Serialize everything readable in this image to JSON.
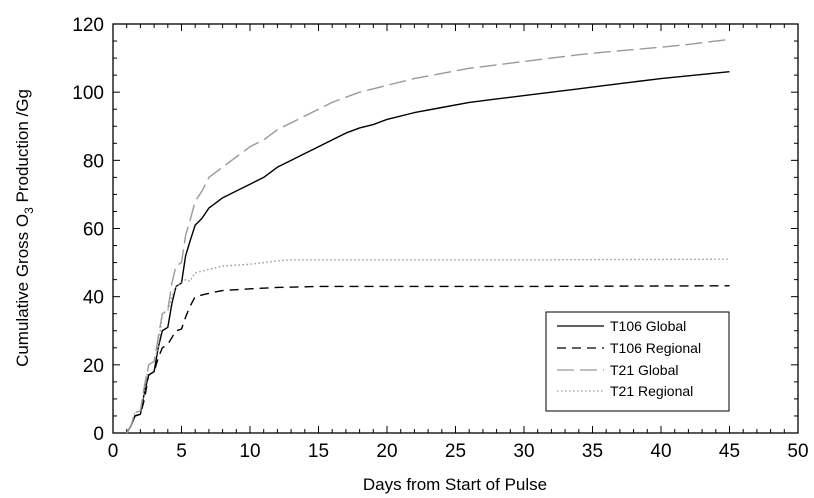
{
  "chart_data": {
    "type": "line",
    "xlabel": "Days from Start of Pulse",
    "ylabel_parts": [
      "Cumulative Gross O",
      "3",
      " Production /Gg"
    ],
    "xlim": [
      0,
      50
    ],
    "ylim": [
      0,
      120
    ],
    "xticks": [
      0,
      5,
      10,
      15,
      20,
      25,
      30,
      35,
      40,
      45,
      50
    ],
    "yticks": [
      0,
      20,
      40,
      60,
      80,
      100,
      120
    ],
    "grid": false,
    "legend_position": "bottom-right",
    "series": [
      {
        "name": "T106 Global",
        "color": "#000000",
        "dash": "solid",
        "points": [
          [
            1,
            0
          ],
          [
            1.3,
            2
          ],
          [
            1.6,
            5
          ],
          [
            2.0,
            5.5
          ],
          [
            2.3,
            12
          ],
          [
            2.6,
            17
          ],
          [
            3.0,
            18
          ],
          [
            3.3,
            25
          ],
          [
            3.6,
            30
          ],
          [
            4.0,
            31
          ],
          [
            4.3,
            38
          ],
          [
            4.6,
            43
          ],
          [
            5.0,
            44
          ],
          [
            5.3,
            52
          ],
          [
            5.6,
            56
          ],
          [
            6.0,
            61
          ],
          [
            6.5,
            63
          ],
          [
            7.0,
            66
          ],
          [
            8.0,
            69
          ],
          [
            9.0,
            71
          ],
          [
            10,
            73
          ],
          [
            11,
            75
          ],
          [
            12,
            78
          ],
          [
            13,
            80
          ],
          [
            14,
            82
          ],
          [
            15,
            84
          ],
          [
            16,
            86
          ],
          [
            17,
            88
          ],
          [
            18,
            89.5
          ],
          [
            19,
            90.5
          ],
          [
            20,
            92
          ],
          [
            22,
            94
          ],
          [
            24,
            95.5
          ],
          [
            26,
            97
          ],
          [
            28,
            98
          ],
          [
            30,
            99
          ],
          [
            32,
            100
          ],
          [
            34,
            101
          ],
          [
            36,
            102
          ],
          [
            38,
            103
          ],
          [
            40,
            104
          ],
          [
            42,
            104.8
          ],
          [
            45,
            106
          ]
        ]
      },
      {
        "name": "T106 Regional",
        "color": "#000000",
        "dash": "dashed",
        "points": [
          [
            1,
            0
          ],
          [
            1.3,
            2
          ],
          [
            1.6,
            5
          ],
          [
            2.0,
            5.5
          ],
          [
            2.3,
            10
          ],
          [
            2.6,
            17
          ],
          [
            3.0,
            18
          ],
          [
            3.3,
            22
          ],
          [
            3.6,
            25
          ],
          [
            4.0,
            26
          ],
          [
            4.3,
            28
          ],
          [
            4.6,
            30
          ],
          [
            5.0,
            30.5
          ],
          [
            5.3,
            34
          ],
          [
            5.6,
            37
          ],
          [
            6.0,
            40
          ],
          [
            7.0,
            41
          ],
          [
            8.0,
            41.8
          ],
          [
            10,
            42.3
          ],
          [
            12,
            42.7
          ],
          [
            15,
            43
          ],
          [
            20,
            43
          ],
          [
            30,
            43
          ],
          [
            45,
            43.2
          ]
        ]
      },
      {
        "name": "T21 Global",
        "color": "#999999",
        "dash": "longdash",
        "points": [
          [
            1,
            0
          ],
          [
            1.3,
            2
          ],
          [
            1.6,
            6
          ],
          [
            2.0,
            6.5
          ],
          [
            2.3,
            14
          ],
          [
            2.6,
            20
          ],
          [
            3.0,
            21
          ],
          [
            3.3,
            28
          ],
          [
            3.6,
            35
          ],
          [
            4.0,
            36
          ],
          [
            4.3,
            44
          ],
          [
            4.6,
            49
          ],
          [
            5.0,
            50
          ],
          [
            5.3,
            58
          ],
          [
            5.6,
            62
          ],
          [
            6.0,
            68
          ],
          [
            6.5,
            71
          ],
          [
            7.0,
            75
          ],
          [
            8.0,
            78
          ],
          [
            9.0,
            81
          ],
          [
            10,
            84
          ],
          [
            11,
            86
          ],
          [
            12,
            89
          ],
          [
            13,
            91
          ],
          [
            14,
            93
          ],
          [
            15,
            95
          ],
          [
            16,
            97
          ],
          [
            17,
            98.5
          ],
          [
            18,
            100
          ],
          [
            19,
            101
          ],
          [
            20,
            102
          ],
          [
            22,
            104
          ],
          [
            24,
            105.5
          ],
          [
            26,
            107
          ],
          [
            28,
            108
          ],
          [
            30,
            109
          ],
          [
            32,
            110
          ],
          [
            34,
            111
          ],
          [
            36,
            111.8
          ],
          [
            38,
            112.5
          ],
          [
            40,
            113.2
          ],
          [
            42,
            114
          ],
          [
            45,
            115.5
          ]
        ]
      },
      {
        "name": "T21 Regional",
        "color": "#999999",
        "dash": "dotted",
        "points": [
          [
            1,
            0
          ],
          [
            1.3,
            2
          ],
          [
            1.6,
            6
          ],
          [
            2.0,
            6.5
          ],
          [
            2.3,
            12
          ],
          [
            2.6,
            20
          ],
          [
            3.0,
            21
          ],
          [
            3.3,
            25
          ],
          [
            3.6,
            35
          ],
          [
            4.0,
            36
          ],
          [
            4.3,
            40
          ],
          [
            4.6,
            43
          ],
          [
            5.0,
            44
          ],
          [
            5.3,
            45
          ],
          [
            5.6,
            44.5
          ],
          [
            6.0,
            47
          ],
          [
            6.5,
            47.5
          ],
          [
            7.0,
            48
          ],
          [
            8.0,
            49
          ],
          [
            10,
            49.5
          ],
          [
            12,
            50.5
          ],
          [
            13,
            50.8
          ],
          [
            15,
            50.8
          ],
          [
            20,
            50.8
          ],
          [
            30,
            50.8
          ],
          [
            45,
            51
          ]
        ]
      }
    ]
  }
}
